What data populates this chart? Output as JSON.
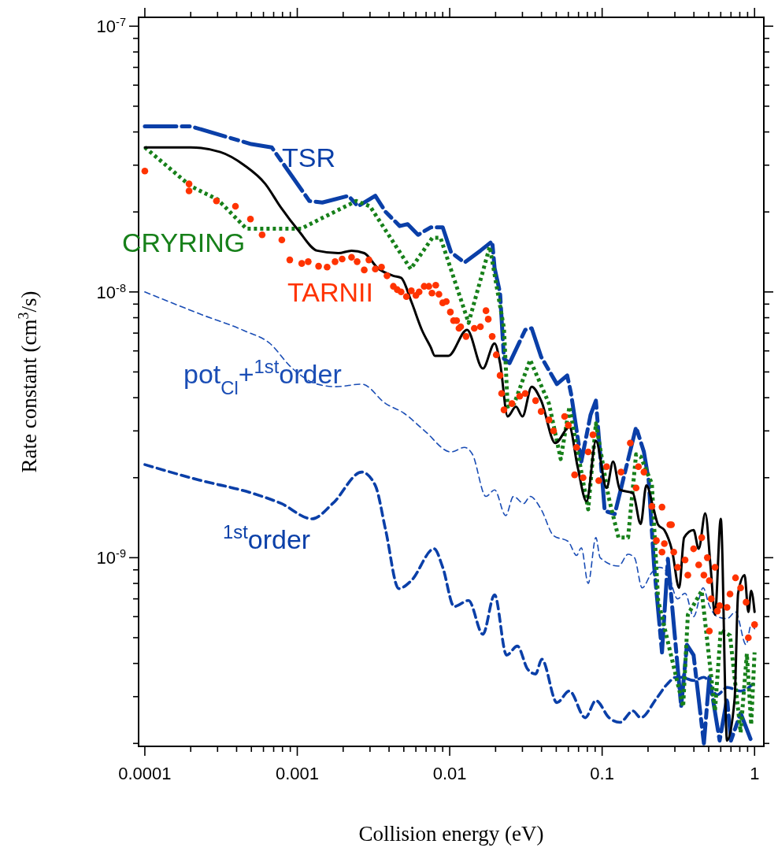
{
  "chart_data": {
    "type": "line",
    "xlabel": "Collision energy (eV)",
    "ylabel": "Rate constant (cm$^{3}$/s)",
    "log": "xy",
    "grid": false,
    "xlim": [
      9.1e-05,
      1.15
    ],
    "ylim": [
      1.95e-10,
      1.08e-07
    ],
    "xticks": [
      0.0001,
      {
        "value": 0.0002,
        "label": null
      },
      {
        "value": 0.0003,
        "label": null
      },
      {
        "value": 0.0004,
        "label": null
      },
      {
        "value": 0.0005,
        "label": null
      },
      {
        "value": 0.0006,
        "label": null
      },
      {
        "value": 0.0007,
        "label": null
      },
      {
        "value": 0.0008,
        "label": null
      },
      {
        "value": 0.0009,
        "label": null
      },
      0.001,
      {
        "value": 0.002,
        "label": null
      },
      {
        "value": 0.003,
        "label": null
      },
      {
        "value": 0.004,
        "label": null
      },
      {
        "value": 0.005,
        "label": null
      },
      {
        "value": 0.006,
        "label": null
      },
      {
        "value": 0.007,
        "label": null
      },
      {
        "value": 0.008,
        "label": null
      },
      {
        "value": 0.009,
        "label": null
      },
      0.01,
      {
        "value": 0.02,
        "label": null
      },
      {
        "value": 0.03,
        "label": null
      },
      {
        "value": 0.04,
        "label": null
      },
      {
        "value": 0.05,
        "label": null
      },
      {
        "value": 0.06,
        "label": null
      },
      {
        "value": 0.07,
        "label": null
      },
      {
        "value": 0.08,
        "label": null
      },
      {
        "value": 0.09,
        "label": null
      },
      0.1,
      {
        "value": 0.2,
        "label": null
      },
      {
        "value": 0.3,
        "label": null
      },
      {
        "value": 0.4,
        "label": null
      },
      {
        "value": 0.5,
        "label": null
      },
      {
        "value": 0.6,
        "label": null
      },
      {
        "value": 0.7,
        "label": null
      },
      {
        "value": 0.8,
        "label": null
      },
      {
        "value": 0.9,
        "label": null
      },
      1
    ],
    "yticks": [
      {
        "value": 2e-10,
        "label": null
      },
      {
        "value": 3e-10,
        "label": null
      },
      {
        "value": 4e-10,
        "label": null
      },
      {
        "value": 5e-10,
        "label": null
      },
      {
        "value": 6e-10,
        "label": null
      },
      {
        "value": 7e-10,
        "label": null
      },
      {
        "value": 8e-10,
        "label": null
      },
      {
        "value": 9e-10,
        "label": null
      },
      {
        "value": 1e-09,
        "label": "10$^{-9}$"
      },
      {
        "value": 2e-09,
        "label": null
      },
      {
        "value": 3e-09,
        "label": null
      },
      {
        "value": 4e-09,
        "label": null
      },
      {
        "value": 5e-09,
        "label": null
      },
      {
        "value": 6e-09,
        "label": null
      },
      {
        "value": 7e-09,
        "label": null
      },
      {
        "value": 8e-09,
        "label": null
      },
      {
        "value": 9e-09,
        "label": null
      },
      {
        "value": 1e-08,
        "label": "10$^{-8}$"
      },
      {
        "value": 2e-08,
        "label": null
      },
      {
        "value": 3e-08,
        "label": null
      },
      {
        "value": 4e-08,
        "label": null
      },
      {
        "value": 5e-08,
        "label": null
      },
      {
        "value": 6e-08,
        "label": null
      },
      {
        "value": 7e-08,
        "label": null
      },
      {
        "value": 8e-08,
        "label": null
      },
      {
        "value": 9e-08,
        "label": null
      },
      {
        "value": 1e-07,
        "label": "10$^{-7}$"
      }
    ],
    "series": [
      {
        "name": "pot$_{Cl}$+$^{1st}$order",
        "type": "line",
        "line_style": "dashed",
        "color": "#1a4db5",
        "x": [
          0.0001,
          0.000238,
          0.000448,
          0.000662,
          0.000914,
          0.00135,
          0.00179,
          0.00265,
          0.0038,
          0.005,
          0.00685,
          0.0102,
          0.0125,
          0.0141,
          0.0173,
          0.0197,
          0.0233,
          0.0262,
          0.0306,
          0.0337,
          0.0398,
          0.048,
          0.06,
          0.068,
          0.073,
          0.081,
          0.091,
          0.097,
          0.128,
          0.148,
          0.163,
          0.183,
          0.212,
          0.238,
          0.268,
          0.313,
          0.35,
          0.398,
          0.46,
          0.505,
          0.57,
          0.66,
          0.75,
          0.88,
          0.95,
          1.0
        ],
        "values": [
          1e-08,
          8.2e-09,
          7.15e-09,
          6.4e-09,
          5.2e-09,
          4.5e-09,
          4.4e-09,
          4.5e-09,
          3.8e-09,
          3.5e-09,
          3e-09,
          2.5e-09,
          2.6e-09,
          2.45e-09,
          1.7e-09,
          1.8e-09,
          1.44e-09,
          1.7e-09,
          1.6e-09,
          1.7e-09,
          1.52e-09,
          1.21e-09,
          1.15e-09,
          1.02e-09,
          1.09e-09,
          8e-10,
          1.19e-09,
          1e-09,
          9.3e-10,
          1.03e-09,
          1e-09,
          7.7e-10,
          8.8e-10,
          9.2e-10,
          8.8e-10,
          7e-10,
          7.35e-10,
          6e-10,
          7.7e-10,
          6.6e-10,
          6e-10,
          5.9e-10,
          6.25e-10,
          4.7e-10,
          5.6e-10,
          5.4e-10
        ]
      },
      {
        "name": "$^{1st}$order",
        "type": "line",
        "line_style": "dashed",
        "color": "#0a3fa8",
        "x": [
          0.0001,
          0.000227,
          0.000504,
          0.000783,
          0.00125,
          0.00171,
          0.00265,
          0.00325,
          0.0038,
          0.00463,
          0.0056,
          0.0079,
          0.009,
          0.0107,
          0.0133,
          0.0165,
          0.0197,
          0.0236,
          0.0278,
          0.0325,
          0.0366,
          0.0402,
          0.0505,
          0.061,
          0.0775,
          0.091,
          0.111,
          0.131,
          0.159,
          0.179,
          0.227,
          0.268,
          0.306,
          0.33,
          0.398,
          0.465,
          0.57,
          0.66,
          0.81,
          0.98
        ],
        "values": [
          2.24e-09,
          1.96e-09,
          1.75e-09,
          1.6e-09,
          1.4e-09,
          1.6e-09,
          2.1e-09,
          1.87e-09,
          1.27e-09,
          7.65e-10,
          8.2e-10,
          1.08e-09,
          9.2e-10,
          6.55e-10,
          6.9e-10,
          5.15e-10,
          7.25e-10,
          4.3e-10,
          4.65e-10,
          3.8e-10,
          3.65e-10,
          4.15e-10,
          2.85e-10,
          3.15e-10,
          2.5e-10,
          2.9e-10,
          2.5e-10,
          2.4e-10,
          2.65e-10,
          2.5e-10,
          2.95e-10,
          3.35e-10,
          3.55e-10,
          3.55e-10,
          3.45e-10,
          3.55e-10,
          3.05e-10,
          3.25e-10,
          3.15e-10,
          3.35e-10
        ]
      },
      {
        "name": "TSR",
        "type": "line",
        "line_style": "dashed",
        "color": "#0a3fa8",
        "x": [
          0.0001,
          0.0002,
          0.0005,
          0.00068,
          0.0012,
          0.00146,
          0.00217,
          0.0025,
          0.00325,
          0.0038,
          0.0047,
          0.0053,
          0.0062,
          0.0075,
          0.009,
          0.0102,
          0.0125,
          0.0159,
          0.019,
          0.0197,
          0.0214,
          0.0227,
          0.0247,
          0.0313,
          0.0345,
          0.0398,
          0.0505,
          0.059,
          0.0625,
          0.073,
          0.084,
          0.091,
          0.104,
          0.121,
          0.167,
          0.188,
          0.202,
          0.219,
          0.247,
          0.27,
          0.33,
          0.36,
          0.398,
          0.465,
          0.505,
          0.59,
          0.66,
          0.7,
          0.81,
          0.95
        ],
        "values": [
          4.2e-08,
          4.2e-08,
          3.6e-08,
          3.5e-08,
          2.2e-08,
          2.17e-08,
          2.3e-08,
          2.1e-08,
          2.3e-08,
          2e-08,
          1.77e-08,
          1.8e-08,
          1.64e-08,
          1.75e-08,
          1.75e-08,
          1.41e-08,
          1.29e-08,
          1.43e-08,
          1.55e-08,
          1.23e-08,
          9.9e-09,
          5.6e-09,
          5.4e-09,
          7.2e-09,
          7.3e-09,
          5.7e-09,
          4.5e-09,
          4.85e-09,
          4.15e-09,
          2.3e-09,
          3.45e-09,
          3.9e-09,
          1.5e-09,
          1.46e-09,
          3.1e-09,
          2.5e-09,
          1.95e-09,
          9.4e-10,
          4.4e-10,
          9.9e-10,
          2.75e-10,
          4.7e-10,
          4.3e-10,
          2e-10,
          3.55e-10,
          2.05e-10,
          2.95e-10,
          2.05e-10,
          2.6e-10,
          2.05e-10
        ]
      },
      {
        "name": "CRYRING",
        "type": "line",
        "line_style": "dotted",
        "color": "#17801a",
        "x": [
          0.0001,
          0.0002,
          0.0003,
          0.000464,
          0.00106,
          0.00141,
          0.00244,
          0.003,
          0.00555,
          0.0077,
          0.0087,
          0.0133,
          0.0183,
          0.0227,
          0.024,
          0.0265,
          0.0337,
          0.0448,
          0.0535,
          0.061,
          0.081,
          0.091,
          0.11,
          0.128,
          0.148,
          0.167,
          0.179,
          0.212,
          0.233,
          0.34,
          0.365,
          0.45,
          0.55,
          0.6,
          0.69,
          0.81,
          0.89,
          0.95,
          1.0
        ],
        "values": [
          3.5e-08,
          2.5e-08,
          2.23e-08,
          1.73e-08,
          1.73e-08,
          1.88e-08,
          2.2e-08,
          2.1e-08,
          1.22e-08,
          1.6e-08,
          1.6e-08,
          7.65e-09,
          1.48e-08,
          7.3e-09,
          3.7e-09,
          3.8e-09,
          5.55e-09,
          3.8e-09,
          2.35e-09,
          3.7e-09,
          1.52e-09,
          3.2e-09,
          1.7e-09,
          1.19e-09,
          1.19e-09,
          2.45e-09,
          2.4e-09,
          1.9e-09,
          6.9e-10,
          2.75e-10,
          6.1e-10,
          7.5e-10,
          2.65e-10,
          5.35e-10,
          5.1e-10,
          2.2e-10,
          4.35e-10,
          2.35e-10,
          4.4e-10
        ]
      },
      {
        "type": "line",
        "line_style": "solid",
        "color": "#000000",
        "x": [
          0.0001,
          0.0002,
          0.000313,
          0.000448,
          0.000617,
          0.00078,
          0.00102,
          0.00135,
          0.00186,
          0.00227,
          0.00275,
          0.00337,
          0.00427,
          0.0048,
          0.0056,
          0.0066,
          0.0075,
          0.008,
          0.0098,
          0.013,
          0.0165,
          0.0197,
          0.0214,
          0.024,
          0.0272,
          0.03,
          0.0345,
          0.0398,
          0.0493,
          0.061,
          0.069,
          0.079,
          0.091,
          0.107,
          0.118,
          0.131,
          0.159,
          0.179,
          0.195,
          0.219,
          0.233,
          0.256,
          0.288,
          0.32,
          0.345,
          0.398,
          0.43,
          0.475,
          0.515,
          0.55,
          0.6,
          0.66,
          0.74,
          0.78,
          0.86,
          0.91,
          0.95,
          1.0
        ],
        "values": [
          3.5e-08,
          3.5e-08,
          3.36e-08,
          3e-08,
          2.55e-08,
          2.08e-08,
          1.7e-08,
          1.43e-08,
          1.4e-08,
          1.43e-08,
          1.4e-08,
          1.23e-08,
          1.15e-08,
          1.13e-08,
          9.2e-09,
          7.15e-09,
          6.2e-09,
          5.75e-09,
          5.75e-09,
          7.2e-09,
          5.15e-09,
          6.4e-09,
          5.4e-09,
          3.4e-09,
          3.7e-09,
          3.4e-09,
          4.4e-09,
          3.9e-09,
          2.7e-09,
          3.1e-09,
          2.2e-09,
          1.63e-09,
          2.75e-09,
          1.83e-09,
          2.3e-09,
          1.8e-09,
          1.75e-09,
          1.34e-09,
          1.87e-09,
          1.5e-09,
          1.33e-09,
          1.27e-09,
          1.06e-09,
          7.7e-10,
          1.19e-09,
          1.27e-09,
          1.08e-09,
          1.47e-09,
          9.2e-10,
          6.1e-10,
          1.4e-09,
          2.05e-10,
          2.95e-10,
          7.35e-10,
          8.6e-10,
          6.25e-10,
          7.5e-10,
          6.25e-10
        ]
      },
      {
        "name": "TARNII",
        "type": "scatter",
        "marker": "circle",
        "color": "#ff3300",
        "x": [
          0.0001,
          0.000195,
          0.000195,
          0.000295,
          0.000393,
          0.000493,
          0.000588,
          0.000792,
          0.000893,
          0.00107,
          0.00118,
          0.00138,
          0.00157,
          0.00177,
          0.00197,
          0.00227,
          0.00247,
          0.00275,
          0.00295,
          0.00325,
          0.00357,
          0.00388,
          0.00427,
          0.00453,
          0.0048,
          0.0052,
          0.0056,
          0.006,
          0.0063,
          0.0068,
          0.0073,
          0.00765,
          0.0081,
          0.0085,
          0.009,
          0.0095,
          0.0101,
          0.0106,
          0.0111,
          0.0115,
          0.0118,
          0.0128,
          0.0145,
          0.0159,
          0.0173,
          0.0179,
          0.019,
          0.0202,
          0.0214,
          0.0219,
          0.0227,
          0.0256,
          0.0288,
          0.0313,
          0.0366,
          0.0398,
          0.0448,
          0.048,
          0.0567,
          0.06,
          0.068,
          0.066,
          0.075,
          0.081,
          0.087,
          0.095,
          0.107,
          0.133,
          0.153,
          0.167,
          0.173,
          0.188,
          0.212,
          0.227,
          0.247,
          0.278,
          0.247,
          0.256,
          0.285,
          0.295,
          0.313,
          0.35,
          0.365,
          0.398,
          0.43,
          0.45,
          0.465,
          0.49,
          0.505,
          0.52,
          0.55,
          0.57,
          0.59,
          0.505,
          0.66,
          0.69,
          0.75,
          0.81,
          0.88,
          0.91,
          1.0
        ],
        "values": [
          2.85e-08,
          2.55e-08,
          2.4e-08,
          2.2e-08,
          2.1e-08,
          1.88e-08,
          1.64e-08,
          1.57e-08,
          1.32e-08,
          1.28e-08,
          1.3e-08,
          1.25e-08,
          1.24e-08,
          1.3e-08,
          1.33e-08,
          1.35e-08,
          1.3e-08,
          1.21e-08,
          1.32e-08,
          1.22e-08,
          1.24e-08,
          1.15e-08,
          1.05e-08,
          1.02e-08,
          1e-08,
          9.6e-09,
          1.01e-08,
          9.7e-09,
          1e-08,
          1.05e-08,
          1.05e-08,
          9.9e-09,
          1.06e-08,
          9.8e-09,
          9.1e-09,
          9.2e-09,
          8.4e-09,
          7.8e-09,
          7.8e-09,
          7.3e-09,
          7.4e-09,
          6.8e-09,
          7.3e-09,
          7.4e-09,
          8.5e-09,
          7.9e-09,
          6.8e-09,
          5.8e-09,
          4.85e-09,
          4.15e-09,
          3.6e-09,
          3.8e-09,
          4.05e-09,
          4.15e-09,
          3.9e-09,
          3.55e-09,
          3.3e-09,
          3e-09,
          3.4e-09,
          3.15e-09,
          2.6e-09,
          2.05e-09,
          2e-09,
          2.5e-09,
          2.9e-09,
          1.95e-09,
          2.2e-09,
          2.1e-09,
          2.7e-09,
          1.83e-09,
          2.2e-09,
          2.1e-09,
          1.56e-09,
          1.16e-09,
          1.55e-09,
          1.33e-09,
          1.05e-09,
          1.13e-09,
          1.33e-09,
          1.05e-09,
          9.2e-10,
          9.8e-10,
          8.6e-10,
          1.08e-09,
          9.4e-10,
          1.19e-09,
          8.6e-10,
          1e-09,
          8.2e-10,
          7e-10,
          9.2e-10,
          6.3e-10,
          6.6e-10,
          5.3e-10,
          6.5e-10,
          7.3e-10,
          8.4e-10,
          7.7e-10,
          6.8e-10,
          5e-10,
          5.6e-10
        ]
      }
    ]
  }
}
